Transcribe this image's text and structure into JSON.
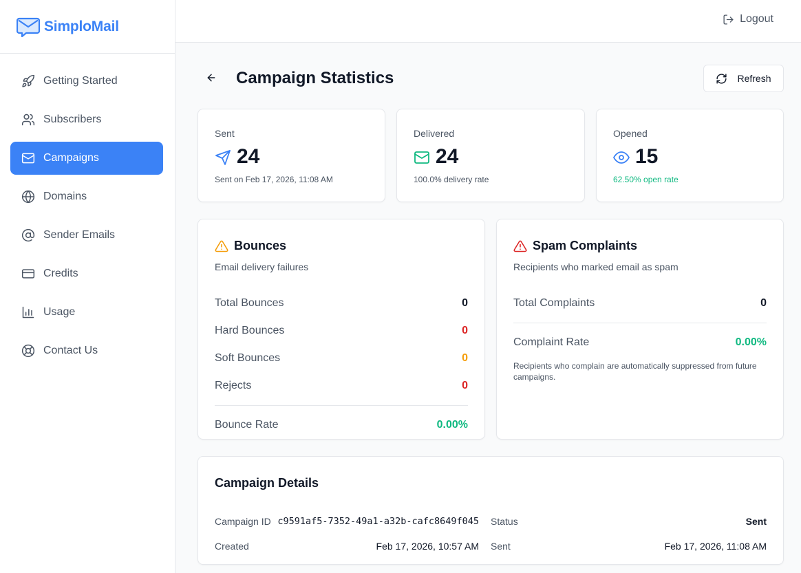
{
  "brand": {
    "name": "SimploMail",
    "accent": "#3b82f6"
  },
  "sidebar": {
    "items": [
      {
        "label": "Getting Started",
        "icon": "rocket-icon",
        "active": false
      },
      {
        "label": "Subscribers",
        "icon": "users-icon",
        "active": false
      },
      {
        "label": "Campaigns",
        "icon": "mail-icon",
        "active": true
      },
      {
        "label": "Domains",
        "icon": "globe-icon",
        "active": false
      },
      {
        "label": "Sender Emails",
        "icon": "at-sign-icon",
        "active": false
      },
      {
        "label": "Credits",
        "icon": "credit-card-icon",
        "active": false
      },
      {
        "label": "Usage",
        "icon": "bar-chart-icon",
        "active": false
      },
      {
        "label": "Contact Us",
        "icon": "life-buoy-icon",
        "active": false
      }
    ]
  },
  "topbar": {
    "logout_label": "Logout"
  },
  "header": {
    "title": "Campaign Statistics",
    "refresh_label": "Refresh"
  },
  "stats": {
    "sent": {
      "label": "Sent",
      "value": "24",
      "sub": "Sent on Feb 17, 2026, 11:08 AM",
      "icon": "send-icon"
    },
    "delivered": {
      "label": "Delivered",
      "value": "24",
      "sub": "100.0% delivery rate",
      "icon": "mail-icon"
    },
    "opened": {
      "label": "Opened",
      "value": "15",
      "sub": "62.50% open rate",
      "icon": "eye-icon"
    }
  },
  "bounces": {
    "title": "Bounces",
    "description": "Email delivery failures",
    "total_label": "Total Bounces",
    "total": "0",
    "hard_label": "Hard Bounces",
    "hard": "0",
    "soft_label": "Soft Bounces",
    "soft": "0",
    "rejects_label": "Rejects",
    "rejects": "0",
    "rate_label": "Bounce Rate",
    "rate": "0.00%"
  },
  "spam": {
    "title": "Spam Complaints",
    "description": "Recipients who marked email as spam",
    "total_label": "Total Complaints",
    "total": "0",
    "rate_label": "Complaint Rate",
    "rate": "0.00%",
    "note": "Recipients who complain are automatically suppressed from future campaigns."
  },
  "details": {
    "title": "Campaign Details",
    "id_label": "Campaign ID",
    "id": "c9591af5-7352-49a1-a32b-cafc8649f045",
    "status_label": "Status",
    "status": "Sent",
    "created_label": "Created",
    "created": "Feb 17, 2026, 10:57 AM",
    "sent_label": "Sent",
    "sent": "Feb 17, 2026, 11:08 AM"
  },
  "colors": {
    "primary": "#3b82f6",
    "success": "#10b981",
    "danger": "#dc2626",
    "warning": "#f59e0b"
  }
}
